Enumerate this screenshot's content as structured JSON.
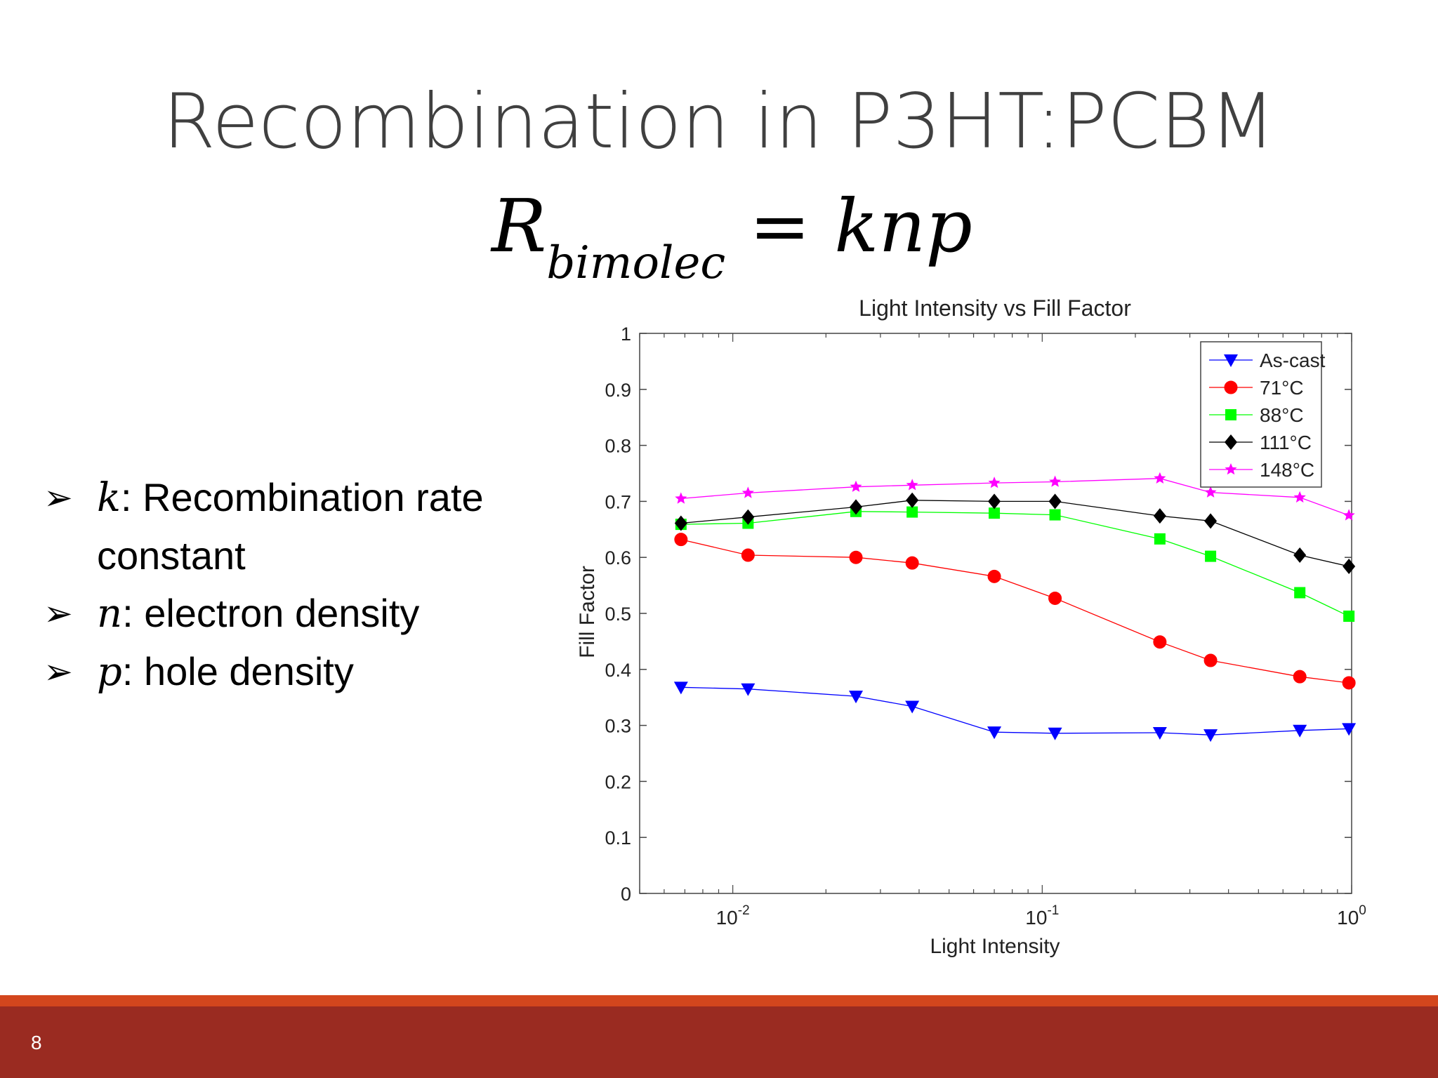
{
  "slide": {
    "title": "Recombination in P3HT:PCBM",
    "equation": {
      "lhs": "R",
      "subscript": "bimolec",
      "equals": "=",
      "rhs": "knp"
    },
    "bullets": [
      {
        "var": "k",
        "text": ": Recombination rate constant"
      },
      {
        "var": "n",
        "text": ": electron density"
      },
      {
        "var": "p",
        "text": ": hole density"
      }
    ],
    "page_number": "8",
    "colors": {
      "footer_orange": "#d3461d",
      "footer_red": "#9a2b21",
      "title": "#404040"
    }
  },
  "chart_data": {
    "type": "line",
    "title": "Light Intensity vs Fill Factor",
    "xlabel": "Light Intensity",
    "ylabel": "Fill Factor",
    "xscale": "log",
    "xlim": [
      0.005,
      1.0
    ],
    "ylim": [
      0,
      1
    ],
    "yticks": [
      "0",
      "0.1",
      "0.2",
      "0.3",
      "0.4",
      "0.5",
      "0.6",
      "0.7",
      "0.8",
      "0.9",
      "1"
    ],
    "xticks": [
      {
        "value": 0.01,
        "base": "10",
        "exp": "-2"
      },
      {
        "value": 0.1,
        "base": "10",
        "exp": "-1"
      },
      {
        "value": 1,
        "base": "10",
        "exp": "0"
      }
    ],
    "grid": false,
    "legend_position": "top-right",
    "x": [
      0.0068,
      0.0112,
      0.025,
      0.038,
      0.07,
      0.11,
      0.24,
      0.35,
      0.68,
      0.98
    ],
    "series": [
      {
        "name": "As-cast",
        "color": "#0000ff",
        "marker": "triangle-down",
        "values": [
          0.368,
          0.365,
          0.352,
          0.334,
          0.288,
          0.286,
          0.287,
          0.283,
          0.291,
          0.294
        ]
      },
      {
        "name": "71°C",
        "color": "#ff0000",
        "marker": "circle",
        "values": [
          0.632,
          0.604,
          0.6,
          0.59,
          0.566,
          0.527,
          0.449,
          0.416,
          0.387,
          0.376
        ]
      },
      {
        "name": "88°C",
        "color": "#00ff00",
        "marker": "square",
        "values": [
          0.659,
          0.661,
          0.682,
          0.681,
          0.679,
          0.676,
          0.633,
          0.602,
          0.537,
          0.495
        ]
      },
      {
        "name": "111°C",
        "color": "#000000",
        "marker": "diamond",
        "values": [
          0.661,
          0.672,
          0.69,
          0.702,
          0.7,
          0.7,
          0.674,
          0.665,
          0.604,
          0.584
        ]
      },
      {
        "name": "148°C",
        "color": "#ff00ff",
        "marker": "star",
        "values": [
          0.705,
          0.715,
          0.726,
          0.729,
          0.733,
          0.735,
          0.741,
          0.716,
          0.707,
          0.675
        ]
      }
    ]
  }
}
